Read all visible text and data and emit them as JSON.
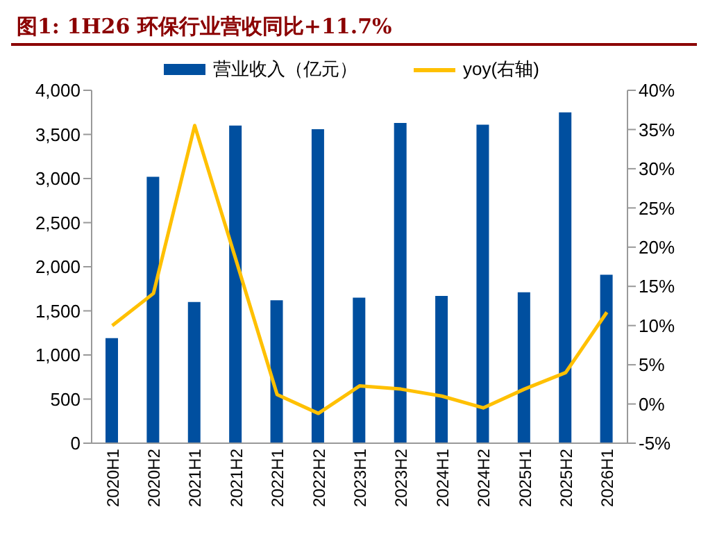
{
  "chart_data": {
    "type": "bar",
    "title": "图1: 1H26 环保行业营收同比+11.7%",
    "categories": [
      "2020H1",
      "2020H2",
      "2021H1",
      "2021H2",
      "2022H1",
      "2022H2",
      "2023H1",
      "2023H2",
      "2024H1",
      "2024H2",
      "2025H1",
      "2025H2",
      "2026H1"
    ],
    "series": [
      {
        "name": "营业收入（亿元）",
        "color": "#004f9f",
        "values": [
          1190,
          3020,
          1600,
          3600,
          1620,
          3560,
          1650,
          3630,
          1670,
          3610,
          1710,
          3750,
          1910
        ]
      },
      {
        "name": "yoy(右轴)",
        "type": "line",
        "axis": "y2",
        "color": "#ffc000",
        "values": [
          10.0,
          14.1,
          35.5,
          18.4,
          1.2,
          -1.2,
          2.3,
          1.9,
          1.0,
          -0.5,
          1.9,
          4.0,
          11.7
        ]
      }
    ],
    "ylim": [
      0,
      4000
    ],
    "yticks": [
      0,
      500,
      {
        "value": 1000,
        "label": "1,000"
      },
      {
        "value": 1500,
        "label": "1,500"
      },
      {
        "value": 2000,
        "label": "2,000"
      },
      {
        "value": 2500,
        "label": "2,500"
      },
      {
        "value": 3000,
        "label": "3,000"
      },
      {
        "value": 3500,
        "label": "3,500"
      },
      {
        "value": 4000,
        "label": "4,000"
      }
    ],
    "y2lim": [
      -5,
      40
    ],
    "y2ticks": [
      {
        "value": -5,
        "label": "-5%"
      },
      {
        "value": 0,
        "label": "0%"
      },
      {
        "value": 5,
        "label": "5%"
      },
      {
        "value": 10,
        "label": "10%"
      },
      {
        "value": 15,
        "label": "15%"
      },
      {
        "value": 20,
        "label": "20%"
      },
      {
        "value": 25,
        "label": "25%"
      },
      {
        "value": 30,
        "label": "30%"
      },
      {
        "value": 35,
        "label": "35%"
      },
      {
        "value": 40,
        "label": "40%"
      }
    ],
    "grid": false,
    "legend": "top",
    "marker": "none",
    "line_style": "solid"
  }
}
